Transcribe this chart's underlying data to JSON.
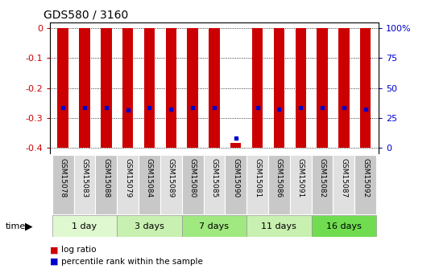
{
  "title": "GDS580 / 3160",
  "samples": [
    "GSM15078",
    "GSM15083",
    "GSM15088",
    "GSM15079",
    "GSM15084",
    "GSM15089",
    "GSM15080",
    "GSM15085",
    "GSM15090",
    "GSM15081",
    "GSM15086",
    "GSM15091",
    "GSM15082",
    "GSM15087",
    "GSM15092"
  ],
  "groups": [
    {
      "label": "1 day",
      "indices": [
        0,
        1,
        2
      ]
    },
    {
      "label": "3 days",
      "indices": [
        3,
        4,
        5
      ]
    },
    {
      "label": "7 days",
      "indices": [
        6,
        7,
        8
      ]
    },
    {
      "label": "11 days",
      "indices": [
        9,
        10,
        11
      ]
    },
    {
      "label": "16 days",
      "indices": [
        12,
        13,
        14
      ]
    }
  ],
  "group_colors": [
    "#e0f8d0",
    "#c8f0b0",
    "#a0e880",
    "#c8f0b0",
    "#70dd50"
  ],
  "log_ratio_top": [
    0.0,
    0.0,
    0.0,
    0.0,
    0.0,
    0.0,
    0.0,
    0.0,
    -0.385,
    0.0,
    0.0,
    0.0,
    0.0,
    0.0,
    0.0
  ],
  "log_ratio_bottom": [
    -0.4,
    -0.4,
    -0.4,
    -0.4,
    -0.4,
    -0.4,
    -0.4,
    -0.4,
    -0.4,
    -0.4,
    -0.4,
    -0.4,
    -0.4,
    -0.4,
    -0.4
  ],
  "percentile_rank": [
    -0.265,
    -0.265,
    -0.265,
    -0.275,
    -0.265,
    -0.27,
    -0.265,
    -0.265,
    -0.368,
    -0.265,
    -0.27,
    -0.265,
    -0.265,
    -0.265,
    -0.27
  ],
  "ylim": [
    -0.42,
    0.02
  ],
  "yticks_left": [
    0,
    -0.1,
    -0.2,
    -0.3,
    -0.4
  ],
  "yticks_right_labels": [
    "100%",
    "75",
    "50",
    "25",
    "0"
  ],
  "bar_color": "#cc0000",
  "dot_color": "#0000cc",
  "bar_width": 0.5,
  "background_color": "#ffffff",
  "box_colors": [
    "#c8c8c8",
    "#e0e0e0"
  ]
}
